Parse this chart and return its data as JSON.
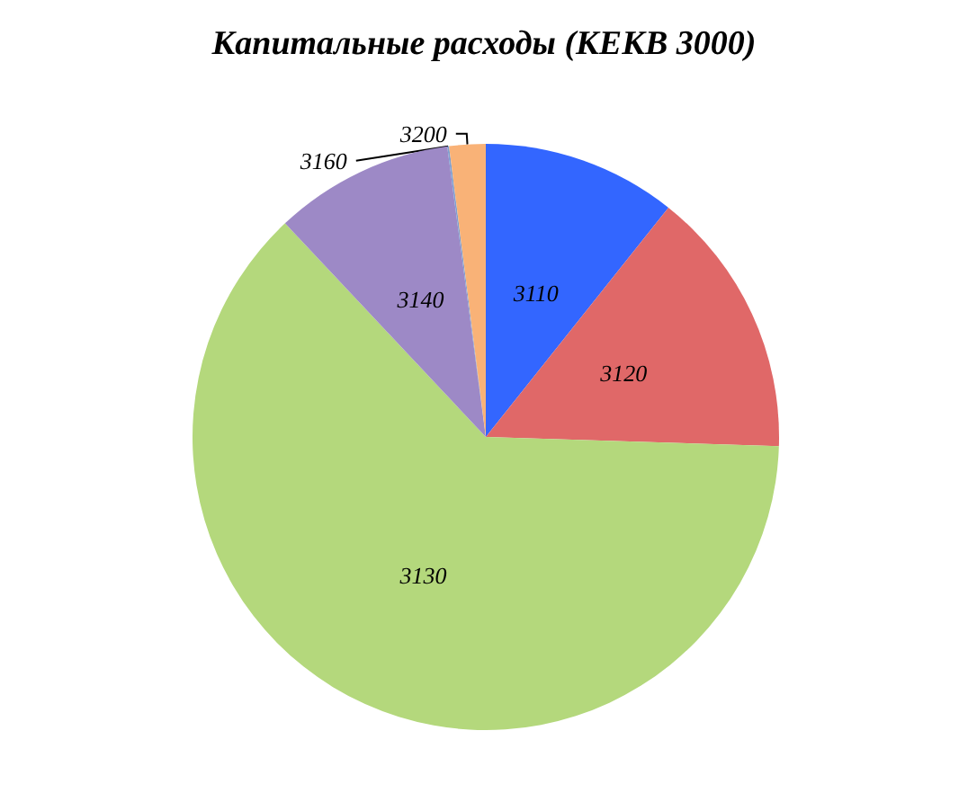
{
  "chart_data": {
    "type": "pie",
    "title": "Капитальные расходы (КЕКВ 3000)",
    "categories": [
      "3110",
      "3120",
      "3130",
      "3140",
      "3160",
      "3200"
    ],
    "values": [
      10.7,
      14.8,
      62.5,
      9.9,
      0.1,
      2
    ],
    "colors": [
      "#3366ff",
      "#e06868",
      "#b4d87c",
      "#9d89c6",
      "#7f9fd0",
      "#f9b277"
    ],
    "data_labels": false,
    "legend": false
  }
}
